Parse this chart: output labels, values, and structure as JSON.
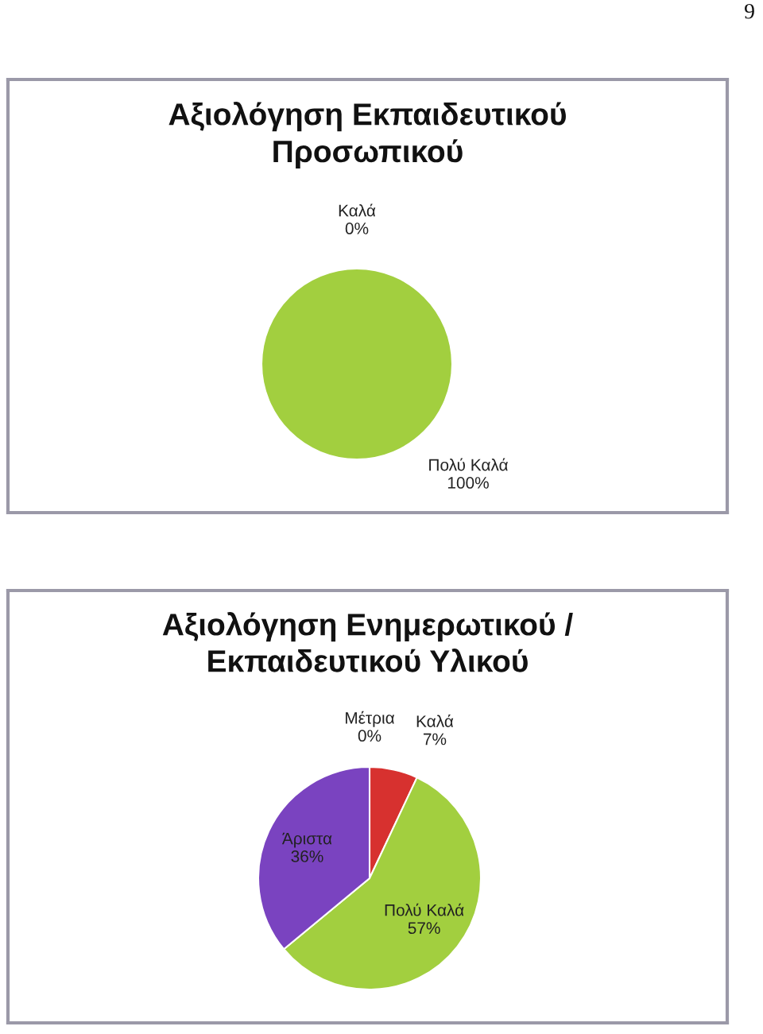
{
  "chart_data": [
    {
      "type": "pie",
      "title": "Αξιολόγηση Εκπαιδευτικού Προσωπικού",
      "categories": [
        "Καλά",
        "Πολύ Καλά"
      ],
      "values": [
        0,
        100
      ],
      "value_labels": [
        "0%",
        "100%"
      ],
      "colors": [
        null,
        "#a2cf3f"
      ],
      "annotations": [
        "9"
      ]
    },
    {
      "type": "pie",
      "title": "Αξιολόγηση Ενημερωτικού / Εκπαιδευτικού Υλικού",
      "categories": [
        "Καλά",
        "Πολύ Καλά",
        "Άριστα",
        "Μέτρια"
      ],
      "values": [
        7,
        57,
        36,
        0
      ],
      "value_labels": [
        "7%",
        "57%",
        "36%",
        "0%"
      ],
      "colors": [
        "#d7312f",
        "#a2cf3f",
        "#7a43c0",
        null
      ]
    }
  ]
}
